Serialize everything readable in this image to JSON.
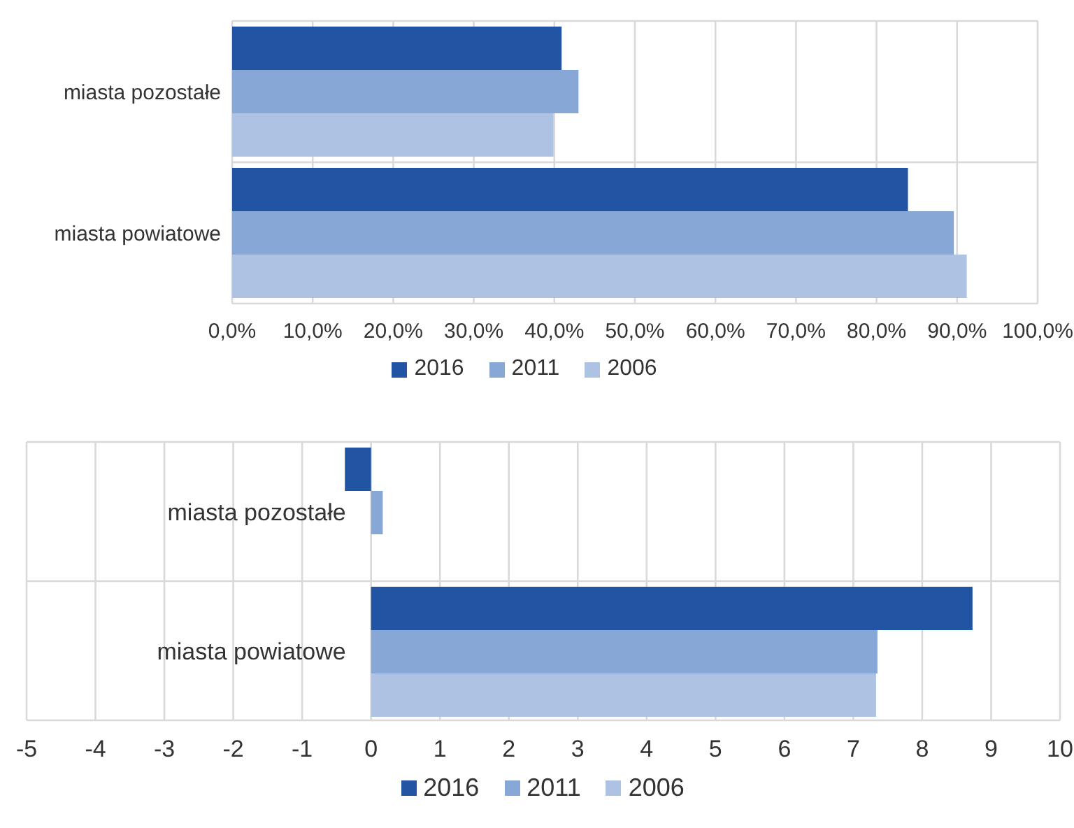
{
  "chart_data": [
    {
      "type": "bar",
      "orientation": "horizontal",
      "categories": [
        "miasta pozostałe",
        "miasta powiatowe"
      ],
      "series": [
        {
          "name": "2016",
          "color": "#2155a3",
          "values": [
            40.9,
            83.9
          ]
        },
        {
          "name": "2011",
          "color": "#87a7d7",
          "values": [
            43.0,
            89.6
          ]
        },
        {
          "name": "2006",
          "color": "#aec3e4",
          "values": [
            39.9,
            91.2
          ]
        }
      ],
      "xlim": [
        0,
        100
      ],
      "xticks": [
        {
          "value": 0,
          "label": "0,0%"
        },
        {
          "value": 10,
          "label": "10,0%"
        },
        {
          "value": 20,
          "label": "20,0%"
        },
        {
          "value": 30,
          "label": "30,0%"
        },
        {
          "value": 40,
          "label": "40,0%"
        },
        {
          "value": 50,
          "label": "50,0%"
        },
        {
          "value": 60,
          "label": "60,0%"
        },
        {
          "value": 70,
          "label": "70,0%"
        },
        {
          "value": 80,
          "label": "80,0%"
        },
        {
          "value": 90,
          "label": "90,0%"
        },
        {
          "value": 100,
          "label": "100,0%"
        }
      ],
      "grid": true,
      "legend": "bottom"
    },
    {
      "type": "bar",
      "orientation": "horizontal",
      "categories": [
        "miasta pozostałe",
        "miasta powiatowe"
      ],
      "series": [
        {
          "name": "2016",
          "color": "#2155a3",
          "values": [
            -0.38,
            8.73
          ]
        },
        {
          "name": "2011",
          "color": "#87a7d7",
          "values": [
            0.17,
            7.35
          ]
        },
        {
          "name": "2006",
          "color": "#aec3e4",
          "values": [
            null,
            7.33
          ]
        }
      ],
      "xlim": [
        -5,
        10
      ],
      "xticks": [
        -5,
        -4,
        -3,
        -2,
        -1,
        0,
        1,
        2,
        3,
        4,
        5,
        6,
        7,
        8,
        9,
        10
      ],
      "grid": true,
      "legend": "bottom"
    }
  ]
}
